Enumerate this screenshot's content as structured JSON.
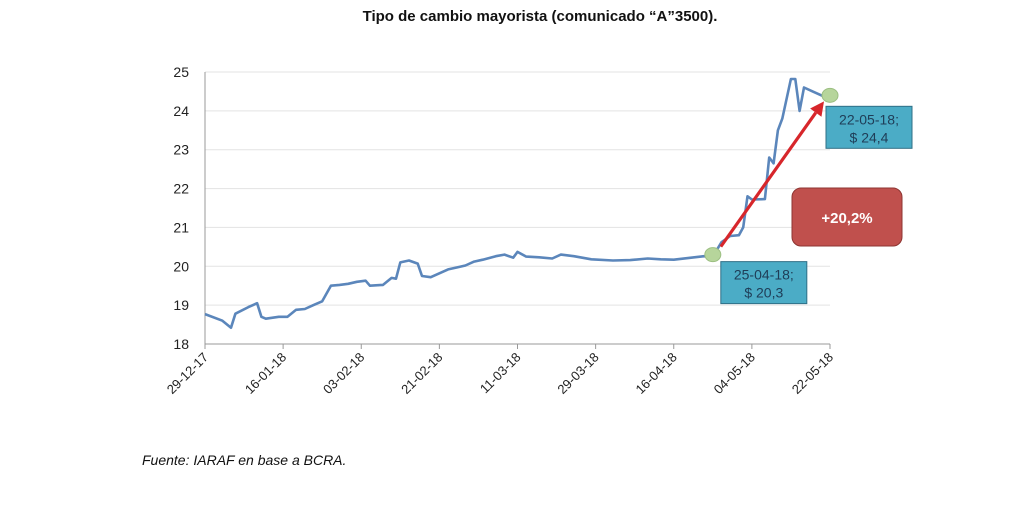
{
  "page": {
    "title": "Tipo de cambio mayorista (comunicado “A”3500).",
    "source": "Fuente: IARAF en base a BCRA."
  },
  "colors": {
    "line": "#5b86bb",
    "grid": "#e3e3e3",
    "axis": "#999999",
    "arrow": "#d7262b",
    "marker": "#b6d59b",
    "callout_fill": "#4bacc6",
    "callout_border": "#2f6f86",
    "badge_fill": "#c0504d"
  },
  "chart_data": {
    "type": "line",
    "title": "Tipo de cambio mayorista (comunicado “A”3500).",
    "xlabel": "",
    "ylabel": "",
    "ylim": [
      18,
      25
    ],
    "xlim": [
      "2017-12-29",
      "2018-05-22"
    ],
    "yticks": [
      18,
      19,
      20,
      21,
      22,
      23,
      24,
      25
    ],
    "x_tick_labels": [
      "29-12-17",
      "16-01-18",
      "03-02-18",
      "21-02-18",
      "11-03-18",
      "29-03-18",
      "16-04-18",
      "04-05-18",
      "22-05-18"
    ],
    "grid": true,
    "legend": "none",
    "series": [
      {
        "name": "",
        "points": [
          [
            "2017-12-29",
            18.77
          ],
          [
            "2018-01-02",
            18.6
          ],
          [
            "2018-01-04",
            18.42
          ],
          [
            "2018-01-05",
            18.78
          ],
          [
            "2018-01-08",
            18.95
          ],
          [
            "2018-01-10",
            19.05
          ],
          [
            "2018-01-11",
            18.7
          ],
          [
            "2018-01-12",
            18.65
          ],
          [
            "2018-01-15",
            18.7
          ],
          [
            "2018-01-17",
            18.7
          ],
          [
            "2018-01-19",
            18.88
          ],
          [
            "2018-01-21",
            18.9
          ],
          [
            "2018-01-23",
            19.0
          ],
          [
            "2018-01-25",
            19.1
          ],
          [
            "2018-01-27",
            19.5
          ],
          [
            "2018-01-29",
            19.52
          ],
          [
            "2018-01-31",
            19.55
          ],
          [
            "2018-02-02",
            19.6
          ],
          [
            "2018-02-04",
            19.63
          ],
          [
            "2018-02-05",
            19.5
          ],
          [
            "2018-02-08",
            19.52
          ],
          [
            "2018-02-10",
            19.7
          ],
          [
            "2018-02-11",
            19.68
          ],
          [
            "2018-02-12",
            20.1
          ],
          [
            "2018-02-14",
            20.15
          ],
          [
            "2018-02-16",
            20.07
          ],
          [
            "2018-02-17",
            19.75
          ],
          [
            "2018-02-19",
            19.72
          ],
          [
            "2018-02-21",
            19.82
          ],
          [
            "2018-02-23",
            19.92
          ],
          [
            "2018-02-25",
            19.97
          ],
          [
            "2018-02-27",
            20.02
          ],
          [
            "2018-03-01",
            20.12
          ],
          [
            "2018-03-03",
            20.17
          ],
          [
            "2018-03-06",
            20.26
          ],
          [
            "2018-03-08",
            20.3
          ],
          [
            "2018-03-10",
            20.22
          ],
          [
            "2018-03-11",
            20.37
          ],
          [
            "2018-03-13",
            20.25
          ],
          [
            "2018-03-16",
            20.23
          ],
          [
            "2018-03-19",
            20.2
          ],
          [
            "2018-03-21",
            20.3
          ],
          [
            "2018-03-24",
            20.26
          ],
          [
            "2018-03-28",
            20.18
          ],
          [
            "2018-04-02",
            20.15
          ],
          [
            "2018-04-06",
            20.16
          ],
          [
            "2018-04-10",
            20.2
          ],
          [
            "2018-04-13",
            20.18
          ],
          [
            "2018-04-16",
            20.17
          ],
          [
            "2018-04-20",
            20.22
          ],
          [
            "2018-04-23",
            20.26
          ],
          [
            "2018-04-25",
            20.25
          ],
          [
            "2018-04-27",
            20.62
          ],
          [
            "2018-04-29",
            20.78
          ],
          [
            "2018-05-01",
            20.8
          ],
          [
            "2018-05-02",
            21.0
          ],
          [
            "2018-05-03",
            21.8
          ],
          [
            "2018-05-04",
            21.72
          ],
          [
            "2018-05-07",
            21.73
          ],
          [
            "2018-05-08",
            22.8
          ],
          [
            "2018-05-09",
            22.65
          ],
          [
            "2018-05-10",
            23.5
          ],
          [
            "2018-05-11",
            23.8
          ],
          [
            "2018-05-13",
            24.82
          ],
          [
            "2018-05-14",
            24.82
          ],
          [
            "2018-05-15",
            24.0
          ],
          [
            "2018-05-16",
            24.6
          ],
          [
            "2018-05-18",
            24.5
          ],
          [
            "2018-05-21",
            24.35
          ],
          [
            "2018-05-22",
            24.37
          ]
        ]
      }
    ],
    "annotations": [
      {
        "date": "2018-04-25",
        "value": 20.3,
        "label_line1": "25-04-18;",
        "label_line2": "$ 20,3"
      },
      {
        "date": "2018-05-22",
        "value": 24.4,
        "label_line1": "22-05-18;",
        "label_line2": "$ 24,4"
      }
    ],
    "change_label": "+20,2%"
  }
}
